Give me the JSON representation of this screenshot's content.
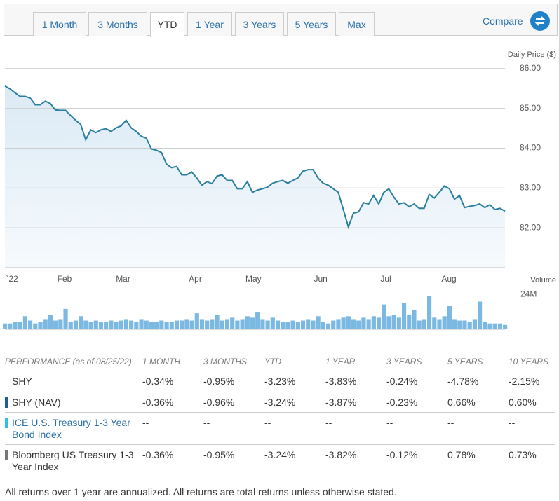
{
  "tabs": [
    "1 Month",
    "3 Months",
    "YTD",
    "1 Year",
    "3 Years",
    "5 Years",
    "Max"
  ],
  "selected_tab": "YTD",
  "compare": "Compare",
  "chart_data": {
    "type": "line",
    "y_label": "Daily Price ($)",
    "color": "#2a7fa0",
    "xlim": [
      0,
      99
    ],
    "xticks": [
      {
        "value": 1.4,
        "label": "`22"
      },
      {
        "value": 11.8,
        "label": "Feb"
      },
      {
        "value": 23.4,
        "label": "Mar"
      },
      {
        "value": 37.7,
        "label": "Apr"
      },
      {
        "value": 49.2,
        "label": "May"
      },
      {
        "value": 62.5,
        "label": "Jun"
      },
      {
        "value": 75.4,
        "label": "Jul"
      },
      {
        "value": 87.9,
        "label": "Aug"
      }
    ],
    "ylim": [
      81,
      86.4
    ],
    "yticks": [
      {
        "value": 82,
        "label": "82.00"
      },
      {
        "value": 83,
        "label": "83.00"
      },
      {
        "value": 84,
        "label": "84.00"
      },
      {
        "value": 85,
        "label": "85.00"
      },
      {
        "value": 86,
        "label": "86.00"
      }
    ],
    "grid": true,
    "values": [
      85.56,
      85.49,
      85.39,
      85.3,
      85.3,
      85.26,
      85.09,
      85.09,
      85.18,
      85.12,
      84.96,
      84.95,
      84.95,
      84.82,
      84.7,
      84.6,
      84.21,
      84.46,
      84.39,
      84.46,
      84.49,
      84.42,
      84.51,
      84.56,
      84.7,
      84.51,
      84.42,
      84.3,
      84.25,
      83.98,
      83.95,
      83.89,
      83.6,
      83.51,
      83.54,
      83.33,
      83.33,
      83.4,
      83.25,
      83.07,
      83.16,
      83.11,
      83.3,
      83.33,
      83.19,
      83.19,
      82.98,
      82.98,
      83.16,
      82.89,
      82.95,
      82.98,
      83.02,
      83.12,
      83.16,
      83.19,
      83.12,
      83.19,
      83.25,
      83.42,
      83.46,
      83.46,
      83.25,
      83.12,
      83.07,
      82.98,
      82.89,
      82.46,
      82.02,
      82.37,
      82.4,
      82.63,
      82.6,
      82.81,
      82.6,
      82.89,
      82.98,
      82.77,
      82.6,
      82.63,
      82.53,
      82.6,
      82.49,
      82.49,
      82.84,
      82.75,
      82.89,
      83.05,
      82.98,
      82.72,
      82.81,
      82.51,
      82.54,
      82.56,
      82.6,
      82.51,
      82.58,
      82.46,
      82.49,
      82.42
    ],
    "volume": {
      "type": "bar",
      "label": "Volume",
      "color": "#7cb9e2",
      "ylim": [
        0,
        25
      ],
      "yticks": [
        {
          "value": 24,
          "label": "24M"
        }
      ],
      "values": [
        4,
        4,
        5,
        5,
        9,
        6,
        4,
        5,
        7,
        10,
        6,
        7,
        14,
        5,
        6,
        9,
        6,
        5,
        6,
        5,
        5,
        6,
        5,
        6,
        7,
        6,
        5,
        7,
        6,
        5,
        5,
        6,
        5,
        5,
        6,
        6,
        7,
        6,
        11,
        7,
        6,
        7,
        10,
        6,
        7,
        8,
        6,
        7,
        9,
        8,
        12,
        7,
        6,
        8,
        6,
        5,
        5,
        6,
        5,
        6,
        7,
        6,
        9,
        5,
        4,
        6,
        7,
        8,
        9,
        7,
        6,
        8,
        7,
        9,
        8,
        17,
        9,
        10,
        8,
        18,
        10,
        13,
        6,
        7,
        23,
        8,
        7,
        9,
        16,
        7,
        6,
        6,
        5,
        7,
        19,
        5,
        4,
        4,
        4,
        3
      ]
    }
  },
  "table": {
    "header": [
      "PERFORMANCE (as of 08/25/22)",
      "1 MONTH",
      "3 MONTHS",
      "YTD",
      "1 YEAR",
      "3 YEARS",
      "5 YEARS",
      "10 YEARS"
    ],
    "rows": [
      {
        "name": "SHY",
        "values": [
          "-0.34%",
          "-0.95%",
          "-3.23%",
          "-3.83%",
          "-0.24%",
          "-4.78%",
          "-2.15%"
        ]
      },
      {
        "name": "SHY (NAV)",
        "marker_color": "#1d5f8a",
        "values": [
          "-0.36%",
          "-0.96%",
          "-3.24%",
          "-3.87%",
          "-0.23%",
          "0.66%",
          "0.60%"
        ]
      },
      {
        "name": "ICE U.S. Treasury 1-3 Year Bond Index",
        "marker_color": "#2cc0e8",
        "name_color": "#2a6fa8",
        "values": [
          "--",
          "--",
          "--",
          "--",
          "--",
          "--",
          "--"
        ]
      },
      {
        "name": "Bloomberg US Treasury 1-3 Year Index",
        "marker_color": "#777777",
        "values": [
          "-0.36%",
          "-0.95%",
          "-3.24%",
          "-3.82%",
          "-0.12%",
          "0.78%",
          "0.73%"
        ]
      }
    ]
  },
  "footnote": "All returns over 1 year are annualized. All returns are total returns unless otherwise stated."
}
